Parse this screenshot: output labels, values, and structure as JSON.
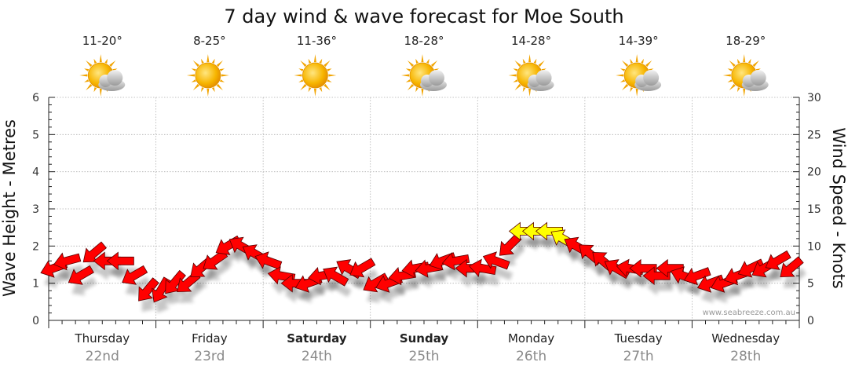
{
  "chart_data": {
    "type": "line",
    "title": "7 day wind & wave forecast for Moe South",
    "ylabel_left": "Wave Height - Metres",
    "ylabel_right": "Wind Speed - Knots",
    "ylim_left": [
      0,
      6
    ],
    "ylim_right": [
      0,
      30
    ],
    "yticks_left": [
      "0",
      "1",
      "2",
      "3",
      "4",
      "5",
      "6"
    ],
    "yticks_right": [
      "0",
      "5",
      "10",
      "15",
      "20",
      "25",
      "30"
    ],
    "grid": true,
    "watermark": "www.seabreeze.com.au",
    "days": [
      {
        "name": "Thursday",
        "date": "22nd",
        "temp": "11-20°",
        "weather": "partly-cloudy",
        "bold": false
      },
      {
        "name": "Friday",
        "date": "23rd",
        "temp": "8-25°",
        "weather": "sunny",
        "bold": false
      },
      {
        "name": "Saturday",
        "date": "24th",
        "temp": "11-36°",
        "weather": "sunny",
        "bold": true
      },
      {
        "name": "Sunday",
        "date": "25th",
        "temp": "18-28°",
        "weather": "partly-cloudy",
        "bold": true
      },
      {
        "name": "Monday",
        "date": "26th",
        "temp": "14-28°",
        "weather": "partly-cloudy",
        "bold": false
      },
      {
        "name": "Tuesday",
        "date": "27th",
        "temp": "14-39°",
        "weather": "partly-cloudy",
        "bold": false
      },
      {
        "name": "Wednesday",
        "date": "28th",
        "temp": "18-29°",
        "weather": "partly-cloudy",
        "bold": false
      }
    ],
    "wind_series": {
      "name": "Wind Speed",
      "unit": "knots",
      "x_hours": [
        0,
        3,
        6,
        9,
        12,
        15,
        18,
        21,
        24,
        27,
        30,
        33,
        36,
        39,
        42,
        45,
        48,
        51,
        54,
        57,
        60,
        63,
        66,
        69,
        72,
        75,
        78,
        81,
        84,
        87,
        90,
        93,
        96,
        99,
        102,
        105,
        108,
        111,
        114,
        117,
        120,
        123,
        126,
        129,
        132,
        135,
        138,
        141,
        144,
        147,
        150,
        153,
        156,
        159,
        162,
        165
      ],
      "speed_knots": [
        7,
        8,
        6,
        9,
        8,
        8,
        6,
        4,
        4,
        5,
        5,
        7,
        8,
        10,
        10,
        9,
        8,
        6,
        5,
        5,
        6,
        6,
        7,
        7,
        5,
        5,
        6,
        7,
        7,
        8,
        8,
        7,
        7,
        8,
        10,
        12,
        12,
        12,
        11,
        10,
        9,
        8,
        7,
        7,
        7,
        6,
        7,
        6,
        6,
        5,
        5,
        6,
        7,
        7,
        8,
        7
      ],
      "direction_deg": [
        250,
        255,
        240,
        230,
        270,
        270,
        240,
        220,
        210,
        220,
        230,
        230,
        235,
        240,
        300,
        300,
        290,
        280,
        270,
        250,
        260,
        300,
        300,
        240,
        240,
        250,
        260,
        260,
        260,
        250,
        260,
        270,
        280,
        290,
        225,
        270,
        270,
        270,
        300,
        300,
        310,
        310,
        300,
        280,
        270,
        270,
        270,
        290,
        250,
        250,
        250,
        250,
        245,
        240,
        240,
        230
      ]
    }
  }
}
